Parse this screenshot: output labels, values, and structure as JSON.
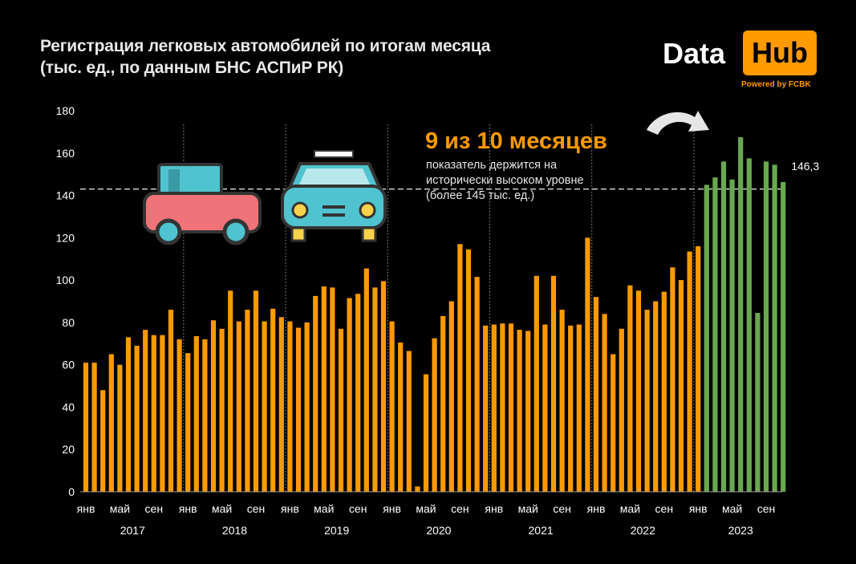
{
  "title_line1": "Регистрация легковых автомобилей по итогам месяца",
  "title_line2": "(тыс. ед., по данным БНС АСПиР РК)",
  "logo": {
    "data": "Data",
    "hub": "Hub",
    "powered": "Powered by FCBK"
  },
  "annotation": {
    "headline": "9 из 10 месяцев",
    "text": "показатель держится на исторически высоком уровне (более 145 тыс. ед.)",
    "last_value_label": "146,3"
  },
  "colors": {
    "bar": "#ff9a00",
    "highlight": "#6aa84f",
    "background": "#000000",
    "grid": "#9a9a9a"
  },
  "chart_data": {
    "type": "bar",
    "ylim": [
      0,
      180
    ],
    "y_ticks": [
      0,
      20,
      40,
      60,
      80,
      100,
      120,
      140,
      160,
      180
    ],
    "reference_line": 143,
    "month_labels": [
      "янв",
      "май",
      "сен"
    ],
    "years": [
      "2017",
      "2018",
      "2019",
      "2020",
      "2021",
      "2022",
      "2023"
    ],
    "values": [
      61,
      61,
      48,
      65,
      60,
      73,
      69,
      76.5,
      74,
      74,
      86,
      72,
      65.5,
      73.5,
      72,
      81,
      77,
      95,
      80.5,
      86,
      95,
      80.5,
      86.5,
      82.5,
      80.5,
      77.5,
      80,
      92.5,
      97,
      96.5,
      77,
      91.5,
      93.5,
      105.5,
      96.5,
      99.5,
      80.5,
      70.5,
      66.5,
      2.5,
      55.5,
      72.5,
      83,
      90,
      117,
      114.5,
      101.5,
      78.5,
      79,
      79.5,
      79.5,
      76.5,
      76,
      102,
      79,
      102,
      86,
      78.5,
      79,
      120,
      92,
      84,
      65,
      77,
      97.5,
      95,
      86,
      90,
      94.5,
      106,
      100,
      113.5,
      116,
      145,
      148.5,
      156,
      147.5,
      167.5,
      157.5,
      84.5,
      156,
      154.5,
      146.3
    ],
    "highlight_count": 10
  }
}
